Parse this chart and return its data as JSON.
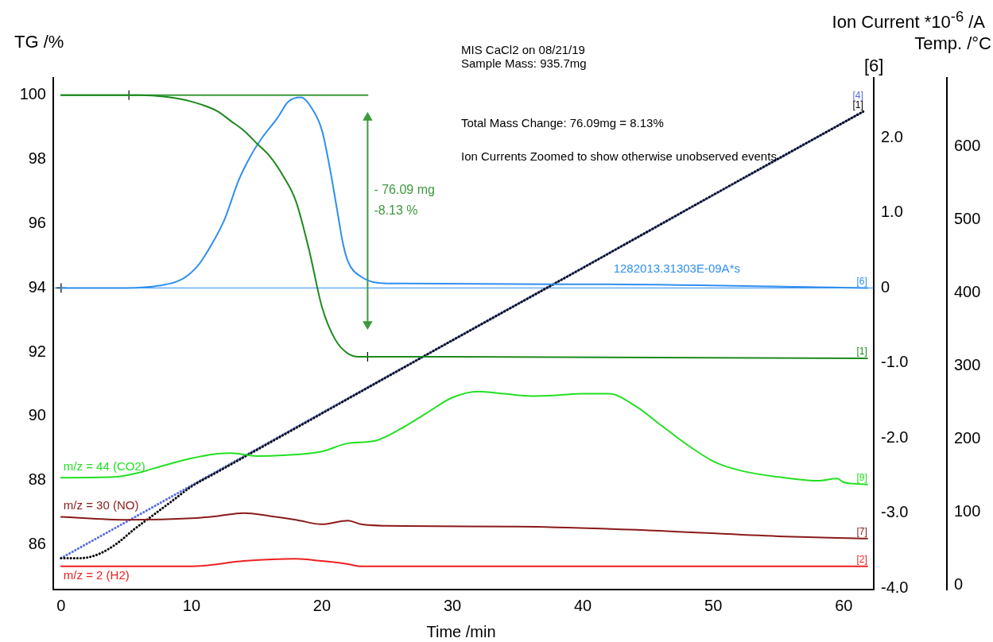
{
  "chart_data": {
    "type": "line",
    "title": "MIS CaCl2 on 08/21/19",
    "subtitle": "Sample Mass: 935.7mg",
    "xlabel": "Time /min",
    "ylabel": "TG /%",
    "y2label": "Ion Current *10$^{-6}$ /A",
    "y3label": "Temp. /°C",
    "xlim": [
      -0.6,
      62.3
    ],
    "xticks": [
      0,
      10,
      20,
      30,
      40,
      50,
      60
    ],
    "ylim": [
      84.6,
      100.54
    ],
    "yticks": [
      86,
      88,
      90,
      92,
      94,
      96,
      98,
      100
    ],
    "y2lim": [
      -4.02,
      2.8
    ],
    "y2ticks": [
      {
        "value": -4,
        "label": "-4.0"
      },
      {
        "value": -3,
        "label": "-3.0"
      },
      {
        "value": -2,
        "label": "-2.0"
      },
      {
        "value": -1,
        "label": "-1.0"
      },
      0,
      {
        "value": 1,
        "label": "1.0"
      },
      {
        "value": 2,
        "label": "2.0"
      }
    ],
    "y3lim": [
      -6,
      694
    ],
    "y3ticks": [
      0,
      100,
      200,
      300,
      400,
      500,
      600
    ],
    "grid": false,
    "legend": false,
    "marker": "none",
    "series": [
      {
        "color": "#1c8a1c",
        "x": [
          0,
          6,
          8,
          10,
          12,
          13,
          14,
          15,
          16,
          17,
          18,
          19,
          20,
          21,
          22,
          23,
          30,
          61.8
        ],
        "values": [
          100,
          100,
          99.95,
          99.8,
          99.5,
          99.2,
          98.9,
          98.5,
          98.1,
          97.5,
          96.7,
          95.2,
          93.4,
          92.4,
          91.95,
          91.85,
          91.85,
          91.8
        ]
      },
      {
        "color": "#2f8ff0",
        "axis": "y2",
        "x": [
          0,
          5,
          7.5,
          9.3,
          10.5,
          11.2,
          12.5,
          13.6,
          14.5,
          15.4,
          16.6,
          17.4,
          18.4,
          19.2,
          20,
          20.6,
          21.2,
          21.6,
          22,
          23,
          25,
          40,
          61.8
        ],
        "values": [
          0,
          0,
          0.03,
          0.12,
          0.3,
          0.48,
          0.9,
          1.43,
          1.75,
          2.0,
          2.27,
          2.48,
          2.54,
          2.4,
          2.1,
          1.6,
          1.0,
          0.6,
          0.35,
          0.15,
          0.06,
          0.05,
          0.0
        ]
      },
      {
        "name": "m/z = 44 (CO2)",
        "color": "#22e022",
        "axis": "y2",
        "x": [
          0,
          4,
          6,
          8,
          10,
          12,
          13,
          15,
          17,
          20,
          22,
          24,
          26,
          28,
          30,
          32,
          34,
          36,
          38,
          40,
          42,
          44,
          46,
          48,
          50,
          52,
          55,
          58,
          59.5,
          60,
          61.8
        ],
        "values": [
          -2.53,
          -2.52,
          -2.46,
          -2.36,
          -2.27,
          -2.21,
          -2.2,
          -2.24,
          -2.23,
          -2.18,
          -2.07,
          -2.04,
          -1.88,
          -1.67,
          -1.46,
          -1.38,
          -1.41,
          -1.44,
          -1.43,
          -1.41,
          -1.41,
          -1.57,
          -1.83,
          -2.09,
          -2.31,
          -2.43,
          -2.52,
          -2.57,
          -2.54,
          -2.59,
          -2.62
        ]
      },
      {
        "name": "m/z = 30 (NO)",
        "color": "#8b1a1a",
        "axis": "y2",
        "x": [
          0,
          5,
          10,
          12,
          14,
          16,
          18,
          20,
          22,
          23,
          25,
          35,
          45,
          55,
          61.8
        ],
        "values": [
          -3.05,
          -3.09,
          -3.07,
          -3.04,
          -3.0,
          -3.04,
          -3.09,
          -3.15,
          -3.1,
          -3.15,
          -3.17,
          -3.18,
          -3.23,
          -3.31,
          -3.34
        ]
      },
      {
        "name": "m/z = 2 (H2)",
        "color": "#ee2020",
        "axis": "y2",
        "x": [
          0,
          10,
          14,
          18,
          20,
          22,
          23,
          61.8
        ],
        "values": [
          -3.71,
          -3.71,
          -3.64,
          -3.61,
          -3.64,
          -3.68,
          -3.71,
          -3.71
        ]
      },
      {
        "color": "#000000",
        "axis": "y3",
        "line_style": "dotted",
        "x": [
          0,
          1.5,
          2.5,
          3.5,
          4.5,
          5.5,
          7,
          8.5,
          10,
          12,
          20,
          30,
          40,
          50,
          61.5
        ],
        "values": [
          37,
          37,
          40,
          48,
          60,
          75,
          95,
          115,
          135,
          155,
          235,
          335,
          434,
          534,
          648
        ]
      },
      {
        "color": "#5a6ee0",
        "axis": "y3",
        "line_style": "dotted",
        "x": [
          0,
          61.5
        ],
        "values": [
          37,
          648
        ]
      },
      {
        "color": "#3c9a3c",
        "x": [
          0,
          23.5
        ],
        "values": [
          100,
          100
        ]
      },
      {
        "color": "#3c9a3c",
        "marker": "triangle",
        "x": [
          23.5,
          23.5
        ],
        "values": [
          99.3,
          92.87
        ]
      },
      {
        "type": "scatter",
        "color": "#000000",
        "marker": "cross",
        "x": [
          5.2,
          23.5
        ],
        "values": [
          100,
          91.85
        ]
      },
      {
        "type": "scatter",
        "color": "#000000",
        "marker": "cross",
        "axis": "y2",
        "x": [
          0
        ],
        "values": [
          0
        ]
      }
    ],
    "ref_lines": [
      {
        "axis": "y2",
        "value": 0,
        "color": "#2f8ff0"
      }
    ],
    "annotations": [
      "[6]",
      "Total Mass Change: 76.09mg = 8.13%",
      "Ion Currents Zoomed to show otherwise unobserved events",
      "1282013.31303E-09A*s",
      "- 76.09 mg",
      "-8.13 %",
      "[1]",
      "[6]",
      "[9]",
      "[7]",
      "[2]",
      "[1]",
      "[4]"
    ]
  }
}
